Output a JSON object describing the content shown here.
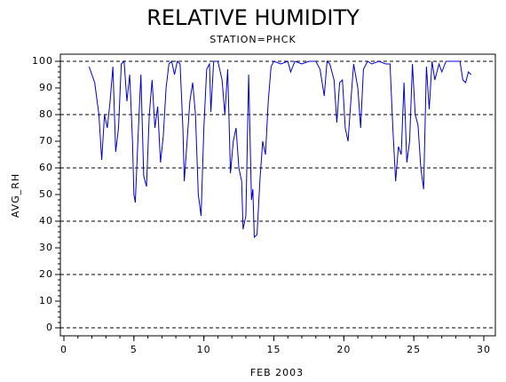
{
  "chart_data": {
    "type": "line",
    "title": "RELATIVE HUMIDITY",
    "subtitle": "STATION=PHCK",
    "x_label": "FEB 2003",
    "y_label": "AVG_RH",
    "xlim": [
      0,
      30
    ],
    "xticks": [
      0,
      5,
      10,
      15,
      20,
      25,
      30
    ],
    "xminor_step": 1,
    "ylim": [
      0,
      100
    ],
    "yticks": [
      0,
      10,
      20,
      30,
      40,
      50,
      60,
      70,
      80,
      90,
      100
    ],
    "yminor_step": 2,
    "grid": true,
    "series": [
      {
        "name": "AVG_RH",
        "color": "#0000cc",
        "x": [
          1.8,
          2.2,
          2.5,
          2.7,
          2.9,
          3.1,
          3.3,
          3.5,
          3.7,
          3.9,
          4.1,
          4.3,
          4.5,
          4.7,
          4.9,
          5.0,
          5.1,
          5.3,
          5.5,
          5.7,
          5.9,
          6.1,
          6.3,
          6.5,
          6.7,
          6.9,
          7.1,
          7.3,
          7.5,
          7.7,
          7.9,
          8.1,
          8.3,
          8.5,
          8.6,
          8.8,
          9.0,
          9.2,
          9.4,
          9.6,
          9.8,
          10.0,
          10.2,
          10.4,
          10.5,
          10.7,
          11.0,
          11.3,
          11.5,
          11.7,
          11.9,
          12.1,
          12.3,
          12.5,
          12.7,
          12.8,
          13.0,
          13.2,
          13.4,
          13.5,
          13.6,
          13.8,
          14.0,
          14.2,
          14.4,
          14.6,
          14.8,
          15.0,
          15.5,
          16.0,
          16.2,
          16.5,
          17.0,
          17.5,
          18.0,
          18.3,
          18.6,
          18.8,
          19.0,
          19.3,
          19.5,
          19.7,
          19.9,
          20.1,
          20.3,
          20.5,
          20.7,
          21.0,
          21.2,
          21.4,
          21.7,
          22.0,
          22.5,
          23.0,
          23.3,
          23.5,
          23.7,
          23.9,
          24.1,
          24.3,
          24.5,
          24.7,
          24.9,
          25.1,
          25.3,
          25.5,
          25.7,
          25.9,
          26.1,
          26.3,
          26.5,
          26.8,
          27.0,
          27.3,
          27.6,
          28.0,
          28.3,
          28.5,
          28.7,
          28.9,
          29.1
        ],
        "values": [
          98,
          92,
          80,
          63,
          80,
          75,
          85,
          98,
          66,
          75,
          99,
          100,
          85,
          95,
          70,
          50,
          47,
          72,
          95,
          57,
          53,
          80,
          93,
          75,
          83,
          62,
          72,
          90,
          99,
          100,
          95,
          100,
          99,
          75,
          55,
          70,
          85,
          92,
          80,
          50,
          42,
          75,
          97,
          99,
          81,
          100,
          100,
          93,
          80,
          97,
          58,
          70,
          75,
          60,
          55,
          37,
          42,
          95,
          48,
          52,
          34,
          35,
          55,
          70,
          65,
          85,
          98,
          100,
          99,
          100,
          96,
          100,
          99,
          100,
          100,
          97,
          87,
          100,
          99,
          93,
          77,
          92,
          93,
          75,
          70,
          85,
          99,
          90,
          75,
          97,
          100,
          99,
          100,
          99,
          99,
          75,
          55,
          68,
          65,
          92,
          62,
          70,
          99,
          80,
          76,
          60,
          52,
          98,
          82,
          100,
          93,
          99,
          96,
          100,
          100,
          100,
          100,
          93,
          92,
          96,
          95
        ]
      }
    ]
  }
}
